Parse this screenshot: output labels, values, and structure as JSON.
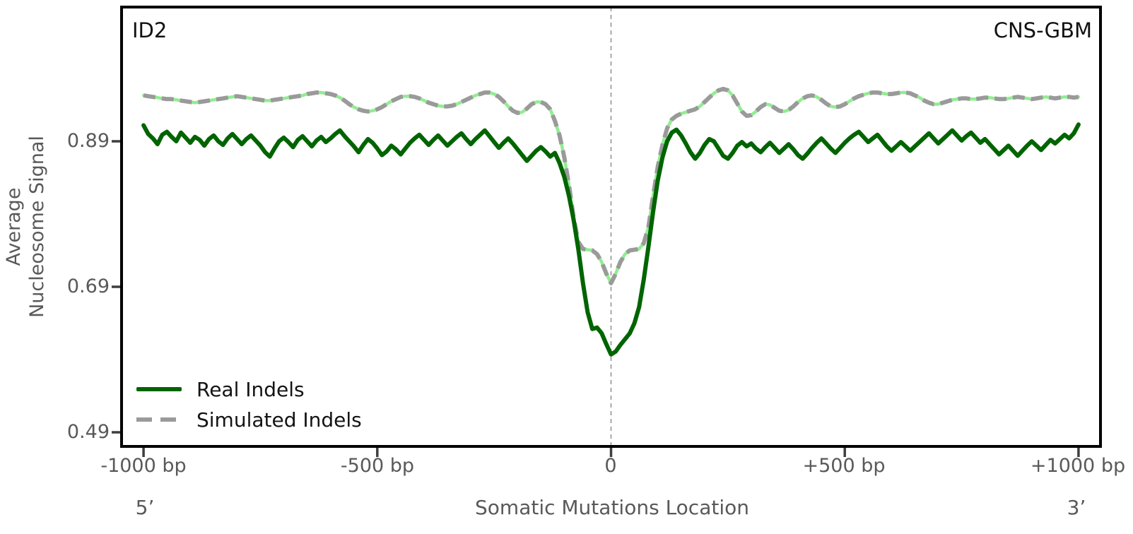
{
  "figure": {
    "gene_label": "ID2",
    "cohort_label": "CNS-GBM"
  },
  "axes": {
    "ylabel_line1": "Average",
    "ylabel_line2": "Nucleosome Signal",
    "xlabel": "Somatic Mutations Location",
    "five_prime_label": "5’",
    "three_prime_label": "3’",
    "x_ticks": [
      {
        "pos": -1000,
        "label": "-1000 bp"
      },
      {
        "pos": -500,
        "label": "-500 bp"
      },
      {
        "pos": 0,
        "label": "0"
      },
      {
        "pos": 500,
        "label": "+500 bp"
      },
      {
        "pos": 1000,
        "label": "+1000 bp"
      }
    ],
    "y_ticks": [
      {
        "pos": 0.89,
        "label": "0.89"
      },
      {
        "pos": 0.69,
        "label": "0.69"
      },
      {
        "pos": 0.49,
        "label": "0.49"
      }
    ]
  },
  "legend": {
    "items": [
      {
        "label": "Real Indels",
        "color": "#006400",
        "style": "solid"
      },
      {
        "label": "Simulated Indels",
        "color": "#9a9a9a",
        "style": "dashed"
      }
    ]
  },
  "colors": {
    "real_line": "#006400",
    "simulated_dash": "#9a9a9a",
    "simulated_underlay": "#90ee90",
    "vline": "#888888",
    "spine": "#000000",
    "tick_text": "#595959"
  },
  "chart_data": {
    "type": "line",
    "title": "",
    "xlabel": "Somatic Mutations Location",
    "ylabel": "Average Nucleosome Signal",
    "annotations": [
      "ID2",
      "CNS-GBM"
    ],
    "legend_position": "lower left",
    "grid": false,
    "vline_x": 0,
    "x_start": -1000,
    "x_step": 10,
    "xlim": [
      -1047,
      1047
    ],
    "ylim": [
      0.4706,
      1.0745
    ],
    "x_tick_values": [
      -1000,
      -500,
      0,
      500,
      1000
    ],
    "y_tick_values": [
      0.49,
      0.69,
      0.89
    ],
    "series": [
      {
        "name": "Real Indels",
        "style": "solid",
        "color": "#006400",
        "values": [
          0.912,
          0.9,
          0.894,
          0.886,
          0.899,
          0.903,
          0.896,
          0.89,
          0.902,
          0.895,
          0.888,
          0.896,
          0.892,
          0.884,
          0.893,
          0.898,
          0.89,
          0.885,
          0.894,
          0.9,
          0.893,
          0.886,
          0.893,
          0.898,
          0.891,
          0.884,
          0.875,
          0.869,
          0.88,
          0.89,
          0.895,
          0.889,
          0.882,
          0.892,
          0.897,
          0.89,
          0.883,
          0.891,
          0.896,
          0.889,
          0.894,
          0.9,
          0.905,
          0.897,
          0.89,
          0.883,
          0.875,
          0.885,
          0.893,
          0.888,
          0.88,
          0.871,
          0.876,
          0.884,
          0.879,
          0.872,
          0.88,
          0.888,
          0.894,
          0.899,
          0.892,
          0.885,
          0.892,
          0.898,
          0.891,
          0.884,
          0.89,
          0.896,
          0.901,
          0.893,
          0.886,
          0.893,
          0.899,
          0.905,
          0.897,
          0.889,
          0.881,
          0.888,
          0.894,
          0.887,
          0.879,
          0.871,
          0.863,
          0.87,
          0.877,
          0.882,
          0.876,
          0.869,
          0.874,
          0.86,
          0.841,
          0.815,
          0.782,
          0.742,
          0.695,
          0.655,
          0.632,
          0.634,
          0.626,
          0.611,
          0.597,
          0.601,
          0.61,
          0.618,
          0.626,
          0.64,
          0.662,
          0.7,
          0.745,
          0.793,
          0.836,
          0.868,
          0.89,
          0.902,
          0.906,
          0.898,
          0.887,
          0.875,
          0.866,
          0.874,
          0.885,
          0.893,
          0.89,
          0.88,
          0.87,
          0.866,
          0.874,
          0.884,
          0.889,
          0.883,
          0.887,
          0.88,
          0.875,
          0.882,
          0.888,
          0.881,
          0.874,
          0.88,
          0.886,
          0.879,
          0.871,
          0.866,
          0.873,
          0.881,
          0.888,
          0.894,
          0.887,
          0.88,
          0.874,
          0.881,
          0.888,
          0.894,
          0.899,
          0.903,
          0.896,
          0.889,
          0.894,
          0.899,
          0.891,
          0.883,
          0.877,
          0.883,
          0.889,
          0.883,
          0.877,
          0.883,
          0.889,
          0.895,
          0.901,
          0.894,
          0.887,
          0.893,
          0.899,
          0.905,
          0.898,
          0.891,
          0.897,
          0.902,
          0.895,
          0.888,
          0.893,
          0.886,
          0.879,
          0.872,
          0.878,
          0.884,
          0.877,
          0.87,
          0.877,
          0.884,
          0.89,
          0.884,
          0.878,
          0.885,
          0.892,
          0.887,
          0.893,
          0.899,
          0.894,
          0.901,
          0.913
        ]
      },
      {
        "name": "Simulated Indels",
        "style": "dashed",
        "color": "#9a9a9a",
        "underlay_color": "#90ee90",
        "values": [
          0.953,
          0.952,
          0.951,
          0.95,
          0.949,
          0.948,
          0.948,
          0.947,
          0.946,
          0.945,
          0.944,
          0.943,
          0.944,
          0.945,
          0.946,
          0.947,
          0.948,
          0.949,
          0.95,
          0.951,
          0.952,
          0.951,
          0.95,
          0.949,
          0.948,
          0.947,
          0.946,
          0.946,
          0.947,
          0.948,
          0.949,
          0.95,
          0.951,
          0.952,
          0.953,
          0.955,
          0.956,
          0.957,
          0.957,
          0.956,
          0.955,
          0.953,
          0.95,
          0.946,
          0.941,
          0.937,
          0.934,
          0.932,
          0.931,
          0.932,
          0.934,
          0.937,
          0.941,
          0.945,
          0.948,
          0.951,
          0.952,
          0.952,
          0.951,
          0.949,
          0.946,
          0.943,
          0.941,
          0.939,
          0.938,
          0.938,
          0.939,
          0.941,
          0.944,
          0.947,
          0.95,
          0.953,
          0.955,
          0.957,
          0.957,
          0.955,
          0.951,
          0.945,
          0.938,
          0.932,
          0.929,
          0.93,
          0.935,
          0.941,
          0.944,
          0.944,
          0.941,
          0.934,
          0.918,
          0.898,
          0.868,
          0.83,
          0.785,
          0.752,
          0.742,
          0.741,
          0.74,
          0.735,
          0.724,
          0.708,
          0.695,
          0.708,
          0.724,
          0.735,
          0.74,
          0.741,
          0.742,
          0.75,
          0.772,
          0.815,
          0.855,
          0.885,
          0.908,
          0.92,
          0.925,
          0.928,
          0.93,
          0.932,
          0.934,
          0.938,
          0.944,
          0.95,
          0.956,
          0.96,
          0.962,
          0.96,
          0.953,
          0.942,
          0.931,
          0.925,
          0.926,
          0.931,
          0.937,
          0.941,
          0.94,
          0.936,
          0.932,
          0.931,
          0.933,
          0.938,
          0.944,
          0.949,
          0.952,
          0.953,
          0.951,
          0.947,
          0.942,
          0.938,
          0.937,
          0.938,
          0.941,
          0.945,
          0.949,
          0.952,
          0.954,
          0.956,
          0.957,
          0.957,
          0.956,
          0.955,
          0.955,
          0.956,
          0.957,
          0.957,
          0.956,
          0.953,
          0.95,
          0.946,
          0.943,
          0.941,
          0.941,
          0.943,
          0.945,
          0.947,
          0.948,
          0.949,
          0.949,
          0.948,
          0.948,
          0.949,
          0.95,
          0.95,
          0.949,
          0.948,
          0.948,
          0.949,
          0.95,
          0.951,
          0.95,
          0.949,
          0.948,
          0.949,
          0.95,
          0.951,
          0.95,
          0.949,
          0.95,
          0.951,
          0.951,
          0.95,
          0.951
        ]
      }
    ]
  }
}
